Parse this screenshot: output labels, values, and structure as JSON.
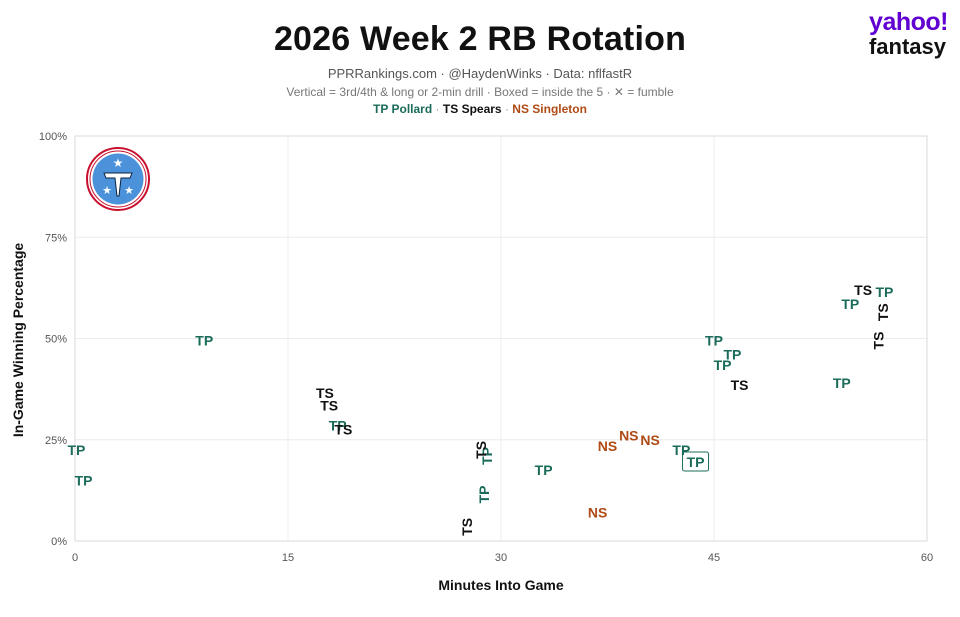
{
  "header": {
    "title": "2026 Week 2 RB Rotation",
    "subtitle": "PPRRankings.com · @HaydenWinks · Data: nflfastR",
    "note": "Vertical = 3rd/4th & long or 2-min drill · Boxed = inside the 5 · ✕ = fumble",
    "legend": [
      {
        "code": "TP",
        "name": "Pollard",
        "color": "#1a6b5a"
      },
      {
        "code": "TS",
        "name": "Spears",
        "color": "#111111"
      },
      {
        "code": "NS",
        "name": "Singleton",
        "color": "#b04a14"
      }
    ]
  },
  "brand": {
    "line1": "yahoo!",
    "line2": "fantasy"
  },
  "logo_icon": "titans-logo-icon",
  "chart_data": {
    "type": "scatter",
    "xlabel": "Minutes Into Game",
    "ylabel": "In-Game Winning Percentage",
    "xlim": [
      0,
      60
    ],
    "ylim": [
      0,
      100
    ],
    "xticks": [
      0,
      15,
      30,
      45,
      60
    ],
    "yticks": [
      0,
      25,
      50,
      75,
      100
    ],
    "ytick_labels": [
      "0%",
      "25%",
      "50%",
      "75%",
      "100%"
    ],
    "grid": true,
    "series": [
      {
        "code": "TP",
        "name": "Pollard",
        "color": "#1a6b5a",
        "points": [
          {
            "x": 0.1,
            "y": 22.5
          },
          {
            "x": 0.6,
            "y": 15.0
          },
          {
            "x": 9.1,
            "y": 49.5
          },
          {
            "x": 18.5,
            "y": 28.5
          },
          {
            "x": 28.8,
            "y": 11.5,
            "vertical": true
          },
          {
            "x": 29.0,
            "y": 21.0,
            "vertical": true
          },
          {
            "x": 33.0,
            "y": 17.5
          },
          {
            "x": 42.7,
            "y": 22.5
          },
          {
            "x": 43.7,
            "y": 19.5,
            "boxed": true
          },
          {
            "x": 45.0,
            "y": 49.5
          },
          {
            "x": 46.3,
            "y": 46.0
          },
          {
            "x": 45.6,
            "y": 43.5
          },
          {
            "x": 54.0,
            "y": 39.0
          },
          {
            "x": 54.6,
            "y": 58.5
          },
          {
            "x": 57.0,
            "y": 61.5
          }
        ]
      },
      {
        "code": "TS",
        "name": "Spears",
        "color": "#111111",
        "points": [
          {
            "x": 17.6,
            "y": 36.5
          },
          {
            "x": 17.9,
            "y": 33.5
          },
          {
            "x": 18.9,
            "y": 27.5
          },
          {
            "x": 27.6,
            "y": 3.5,
            "vertical": true
          },
          {
            "x": 28.6,
            "y": 22.5,
            "vertical": true
          },
          {
            "x": 46.8,
            "y": 38.5
          },
          {
            "x": 55.5,
            "y": 62.0
          },
          {
            "x": 56.9,
            "y": 56.5,
            "vertical": true
          },
          {
            "x": 56.6,
            "y": 49.5,
            "vertical": true
          }
        ]
      },
      {
        "code": "NS",
        "name": "Singleton",
        "color": "#b04a14",
        "points": [
          {
            "x": 37.5,
            "y": 23.5
          },
          {
            "x": 39.0,
            "y": 26.0
          },
          {
            "x": 40.5,
            "y": 25.0
          },
          {
            "x": 36.8,
            "y": 7.0
          }
        ]
      }
    ]
  }
}
